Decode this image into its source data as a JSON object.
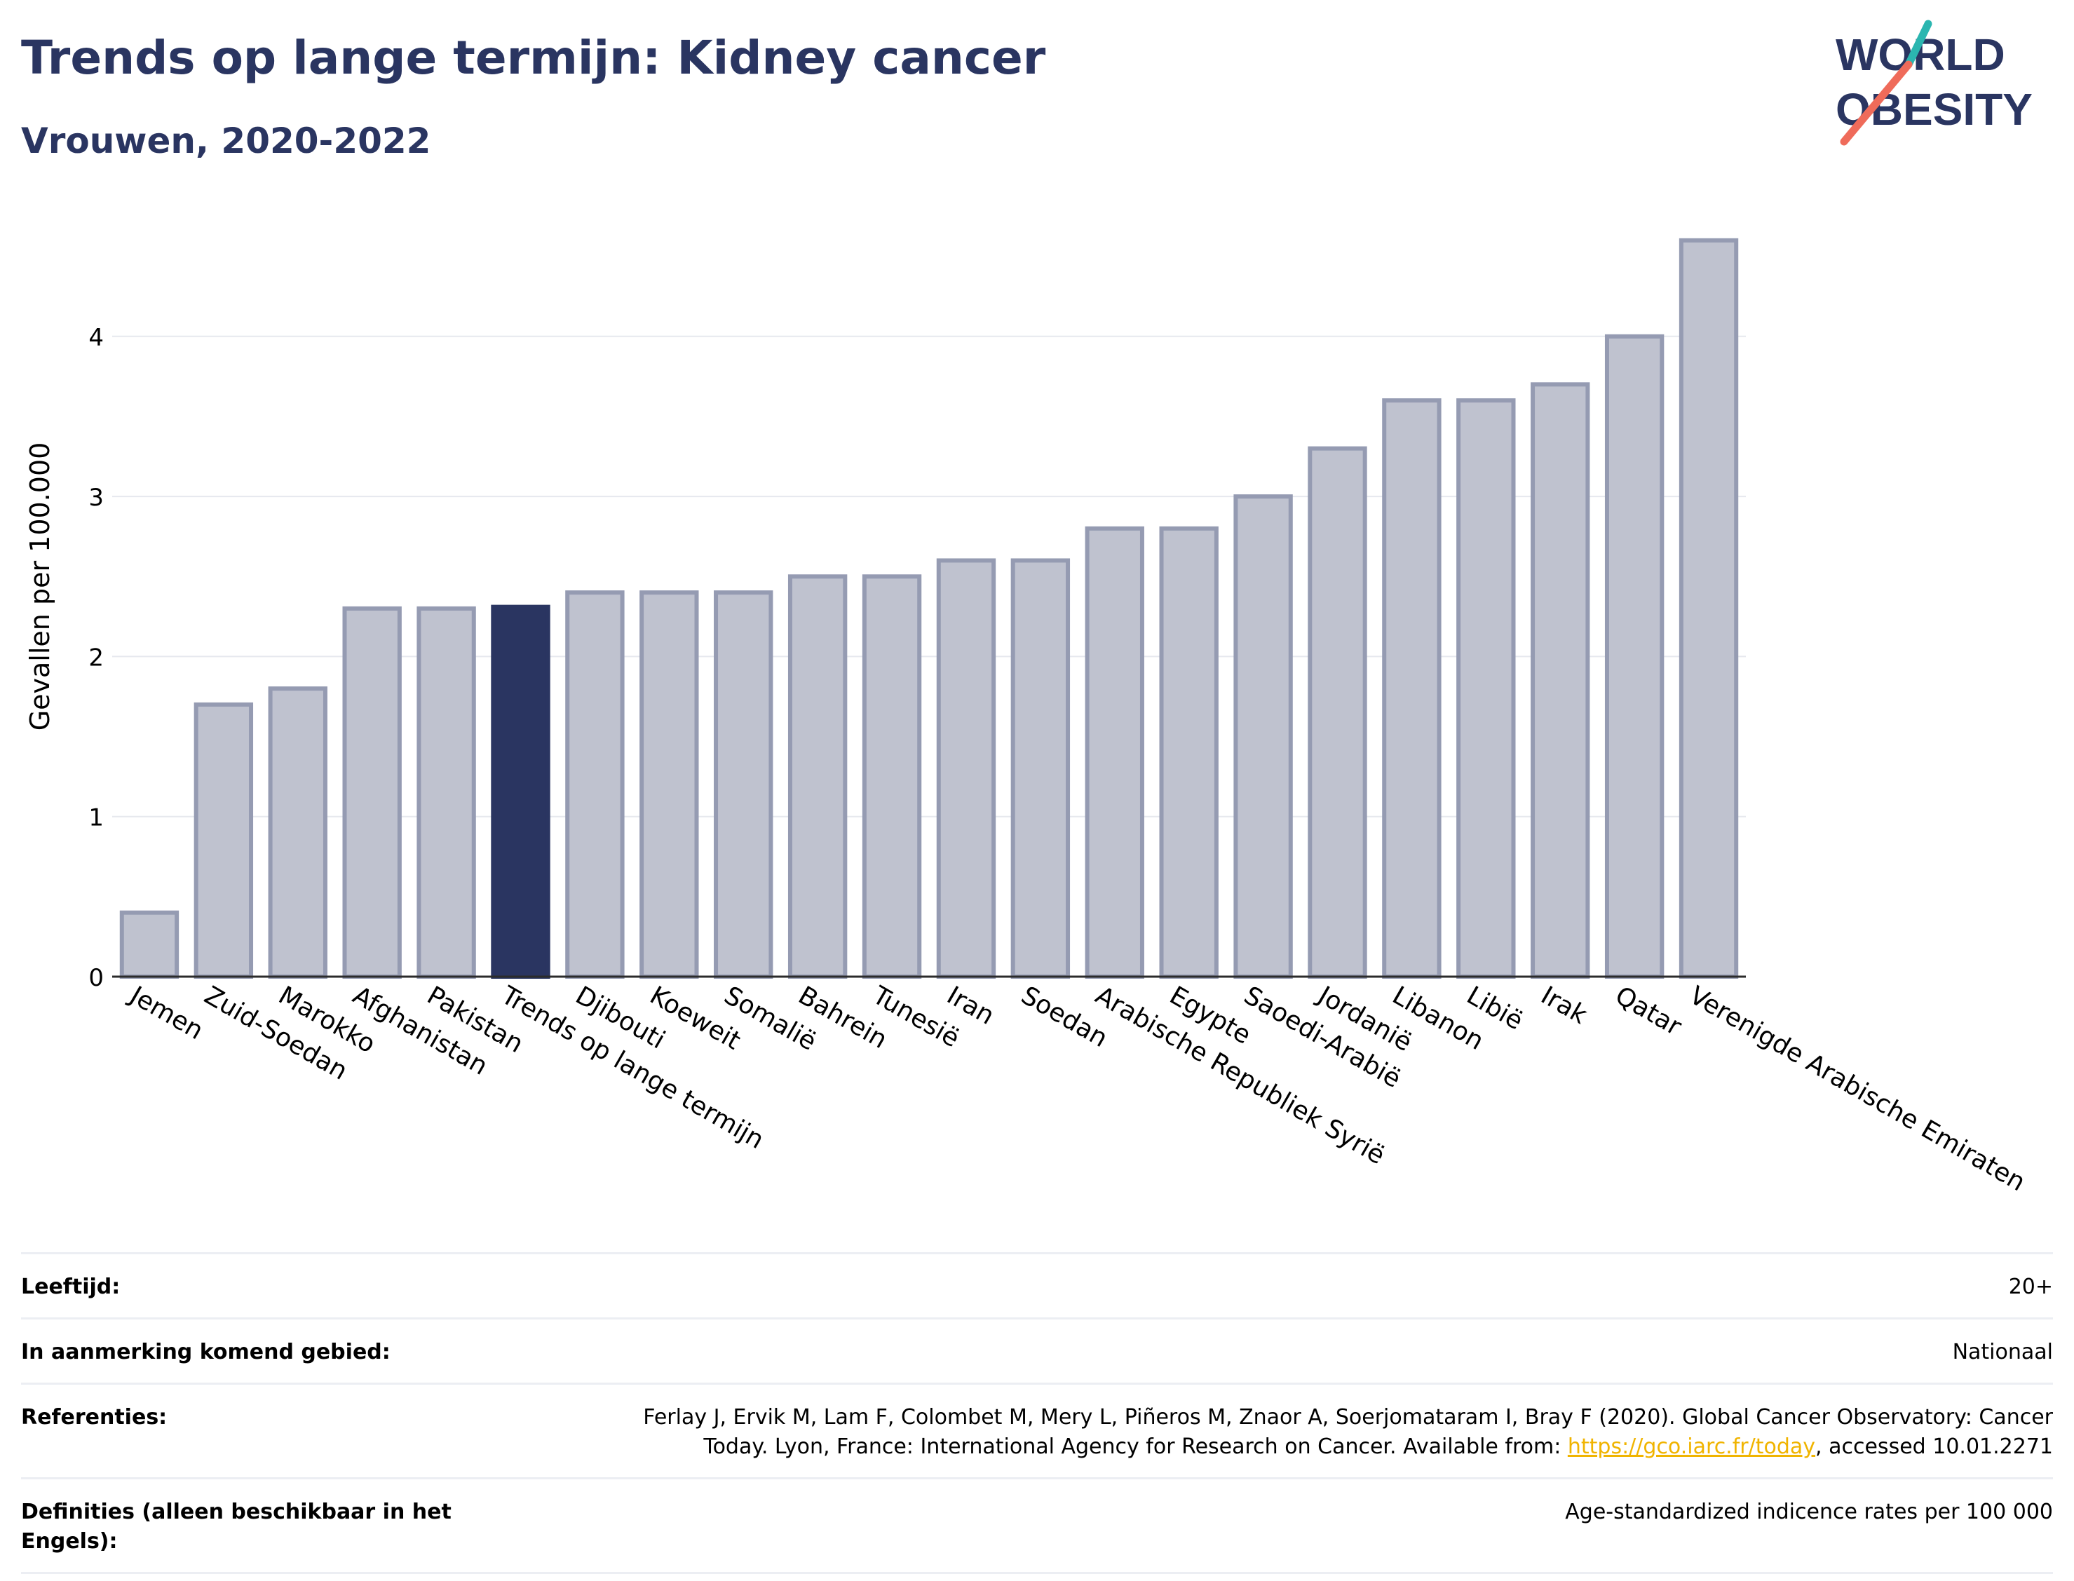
{
  "header": {
    "title": "Trends op lange termijn: Kidney cancer",
    "subtitle": "Vrouwen, 2020-2022"
  },
  "logo": {
    "line1": "WORLD",
    "line2": "OBESITY"
  },
  "colors": {
    "bar": "#bfc2cf",
    "bar_border": "#959bb2",
    "highlight": "#2a3561",
    "teal": "#2bb6b0",
    "coral": "#ef6b5a",
    "grid": "#e6e8ee"
  },
  "chart_data": {
    "type": "bar",
    "title": "Trends op lange termijn: Kidney cancer",
    "subtitle": "Vrouwen, 2020-2022",
    "ylabel": "Gevallen per 100.000",
    "xlabel": "",
    "ylim": [
      0,
      4.7
    ],
    "yticks": [
      0,
      1,
      2,
      3,
      4
    ],
    "grid": true,
    "highlight": "Trends op lange termijn",
    "categories": [
      "Jemen",
      "Zuid-Soedan",
      "Marokko",
      "Afghanistan",
      "Pakistan",
      "Trends op lange termijn",
      "Djibouti",
      "Koeweit",
      "Somalië",
      "Bahrein",
      "Tunesië",
      "Iran",
      "Soedan",
      "Arabische Republiek Syrië",
      "Egypte",
      "Saoedi-Arabië",
      "Jordanië",
      "Libanon",
      "Libië",
      "Irak",
      "Qatar",
      "Verenigde Arabische Emiraten"
    ],
    "values": [
      0.4,
      1.7,
      1.8,
      2.3,
      2.3,
      2.31,
      2.4,
      2.4,
      2.4,
      2.5,
      2.5,
      2.6,
      2.6,
      2.8,
      2.8,
      3.0,
      3.3,
      3.6,
      3.6,
      3.7,
      4.0,
      4.6
    ]
  },
  "info": [
    {
      "label": "Leeftijd:",
      "value": "20+"
    },
    {
      "label": "In aanmerking komend gebied:",
      "value": "Nationaal"
    },
    {
      "label": "Referenties:",
      "value_line1": "Ferlay J, Ervik M, Lam F, Colombet M, Mery L, Piñeros M, Znaor A, Soerjomataram I, Bray F (2020). Global Cancer Observatory: Cancer",
      "value_line2_pre": "Today. Lyon, France: International Agency for Research on Cancer. Available from: ",
      "link": "https://gco.iarc.fr/today",
      "value_line2_post": ", accessed 10.01.2271"
    },
    {
      "label": "Definities (alleen beschikbaar in het Engels):",
      "value": "Age-standardized indicence rates per 100 000"
    }
  ]
}
